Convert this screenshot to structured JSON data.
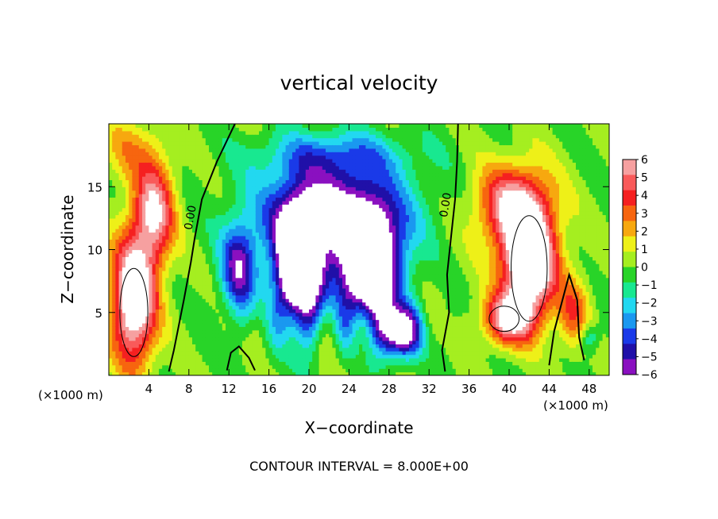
{
  "chart_data": {
    "type": "heatmap",
    "title": "vertical velocity",
    "xlabel": "X−coordinate",
    "ylabel": "Z−coordinate",
    "x_unit_left": "(×1000 m)",
    "x_unit_right": "(×1000 m)",
    "xlim": [
      0,
      50
    ],
    "ylim": [
      0,
      20
    ],
    "x_ticks": [
      4,
      8,
      12,
      16,
      20,
      24,
      28,
      32,
      36,
      40,
      44,
      48
    ],
    "x_tick_labels": [
      "4",
      "8",
      "12",
      "16",
      "20",
      "24",
      "28",
      "32",
      "36",
      "40",
      "44",
      "48"
    ],
    "y_ticks": [
      5,
      10,
      15
    ],
    "y_tick_labels": [
      "5",
      "10",
      "15"
    ],
    "colorbar": {
      "levels": [
        6,
        5,
        4,
        3,
        2,
        1,
        0,
        -1,
        -2,
        -3,
        -4,
        -5,
        -6
      ],
      "labels": [
        "6",
        "5",
        "4",
        "3",
        "2",
        "1",
        "0",
        "−1",
        "−2",
        "−3",
        "−4",
        "−5",
        "−6"
      ],
      "colors": [
        "#f6a0a0",
        "#f95a5a",
        "#f52020",
        "#f7650f",
        "#f7a80f",
        "#eef018",
        "#a5ee20",
        "#28d428",
        "#18e890",
        "#22d8f0",
        "#1a98f0",
        "#1a3ae8",
        "#2010a8",
        "#8a10c0"
      ],
      "over_color": "#ffffff",
      "under_color": "#ffffff"
    },
    "features": [
      {
        "kind": "updraft",
        "x": 2.5,
        "z": 5.5,
        "peak": 9
      },
      {
        "kind": "updraft",
        "x": 42,
        "z": 8.5,
        "peak": 10
      },
      {
        "kind": "updraft",
        "x": 40,
        "z": 4.5,
        "peak": 6
      },
      {
        "kind": "downdraft",
        "x": 19,
        "z": 8,
        "peak": -11
      },
      {
        "kind": "downdraft",
        "x": 26,
        "z": 8,
        "peak": -11
      },
      {
        "kind": "downdraft",
        "x": 13,
        "z": 8,
        "peak": -5
      }
    ],
    "contour_labels": [
      {
        "text": "0.00",
        "x": 8.5,
        "z": 12.5
      },
      {
        "text": "0.00",
        "x": 34,
        "z": 13.5
      }
    ],
    "annotation": "CONTOUR INTERVAL = 8.000E+00"
  }
}
